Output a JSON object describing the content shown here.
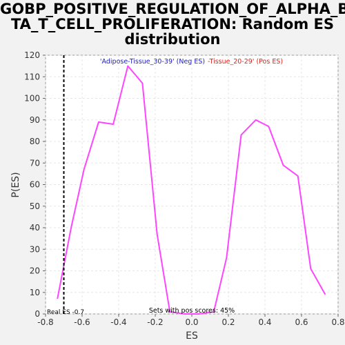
{
  "chart_data": {
    "type": "line",
    "title_lines": [
      "GOBP_POSITIVE_REGULATION_OF_ALPHA_BE",
      "TA_T_CELL_PROLIFERATION: Random ES",
      "distribution"
    ],
    "xlabel": "ES",
    "ylabel": "P(ES)",
    "xlim": [
      -0.8,
      0.8
    ],
    "ylim": [
      0,
      120
    ],
    "xticks": [
      -0.8,
      -0.6,
      -0.4,
      -0.2,
      0.0,
      0.2,
      0.4,
      0.6,
      0.8
    ],
    "xtick_labels": [
      "-0.8",
      "-0.6",
      "-0.4",
      "-0.2",
      "0.0",
      "0.2",
      "0.4",
      "0.6",
      "0.8"
    ],
    "yticks": [
      0,
      10,
      20,
      30,
      40,
      50,
      60,
      70,
      80,
      90,
      100,
      110,
      120
    ],
    "ytick_labels": [
      "0",
      "10",
      "20",
      "30",
      "40",
      "50",
      "60",
      "70",
      "80",
      "90",
      "100",
      "110",
      "120"
    ],
    "grid": true,
    "series": [
      {
        "color": "#ff44ff",
        "x": [
          -0.735,
          -0.66,
          -0.59,
          -0.51,
          -0.43,
          -0.35,
          -0.27,
          -0.19,
          -0.12,
          -0.04,
          0.04,
          0.12,
          0.19,
          0.27,
          0.35,
          0.42,
          0.5,
          0.58,
          0.65,
          0.73
        ],
        "y": [
          7,
          40,
          67,
          89,
          88,
          115,
          107,
          37,
          1,
          0,
          0,
          1,
          26,
          83,
          90,
          87,
          69,
          64,
          21,
          9
        ]
      }
    ],
    "vline": {
      "x": -0.7,
      "color": "#000000",
      "label": "Real ES -0.7"
    },
    "annotations": {
      "neg_label": "'Adipose-Tissue_30-39' (Neg ES)",
      "neg_color": "#1a1acc",
      "pos_label": "-Tissue_20-29' (Pos ES)",
      "pos_color": "#e0201a",
      "bottom_text": "Sets with pos scores: 45%"
    }
  }
}
